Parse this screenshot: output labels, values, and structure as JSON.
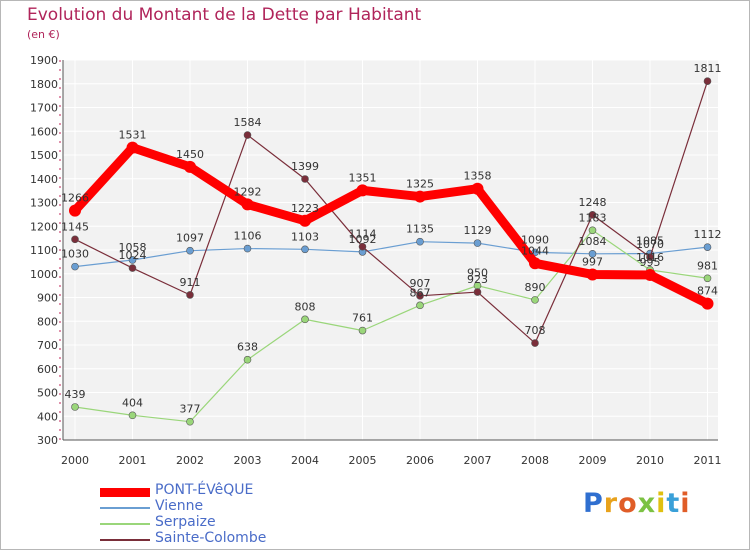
{
  "header": {
    "title": "Evolution du Montant de la Dette par Habitant",
    "subtitle": "(en €)"
  },
  "logo": {
    "letters": [
      "P",
      "r",
      "o",
      "x",
      "i",
      "t",
      "i"
    ],
    "colors": [
      "#2f6fd0",
      "#e8a21c",
      "#e05d28",
      "#7cc243",
      "#e0c010",
      "#3aa0d8",
      "#e05d28"
    ]
  },
  "chart_data": {
    "type": "line",
    "title": "Evolution du Montant de la Dette par Habitant",
    "subtitle": "(en €)",
    "x": [
      "2000",
      "2001",
      "2002",
      "2003",
      "2004",
      "2005",
      "2006",
      "2007",
      "2008",
      "2009",
      "2010",
      "2011"
    ],
    "ylim": [
      300,
      1900
    ],
    "yticks": [
      300,
      400,
      500,
      600,
      700,
      800,
      900,
      1000,
      1100,
      1200,
      1300,
      1400,
      1500,
      1600,
      1700,
      1800,
      1900
    ],
    "grid": true,
    "legend_position": "bottom-left",
    "series": [
      {
        "name": "PONT-ÉVêQUE",
        "color": "#ff0000",
        "values": [
          1266,
          1531,
          1450,
          1292,
          1223,
          1351,
          1325,
          1358,
          1044,
          997,
          995,
          874
        ],
        "labels": [
          "1266",
          "1531",
          "1450",
          "1292",
          "1223",
          "1351",
          "1325",
          "1358",
          "1044",
          "997",
          "995",
          "874"
        ]
      },
      {
        "name": "Vienne",
        "color": "#6a9ed2",
        "values": [
          1030,
          1058,
          1097,
          1106,
          1103,
          1092,
          1135,
          1129,
          1090,
          1084,
          1085,
          1112
        ],
        "labels": [
          "1030",
          "1058",
          "1097",
          "1106",
          "1103",
          "1092",
          "1135",
          "1129",
          "1090",
          "1084",
          "1085",
          "1112"
        ]
      },
      {
        "name": "Serpaize",
        "color": "#9ad67a",
        "values": [
          439,
          404,
          377,
          638,
          808,
          761,
          867,
          950,
          890,
          1183,
          1016,
          981
        ],
        "labels": [
          "439",
          "404",
          "377",
          "638",
          "808",
          "761",
          "867",
          "950",
          "890",
          "1183",
          "1016",
          "981"
        ]
      },
      {
        "name": "Sainte-Colombe",
        "color": "#7a2e3a",
        "values": [
          1145,
          1024,
          911,
          1584,
          1399,
          1114,
          907,
          923,
          708,
          1248,
          1070,
          1811
        ],
        "labels": [
          "1145",
          "1024",
          "911",
          "1584",
          "1399",
          "1114",
          "907",
          "923",
          "708",
          "1248",
          "1070",
          "1811"
        ]
      }
    ]
  }
}
